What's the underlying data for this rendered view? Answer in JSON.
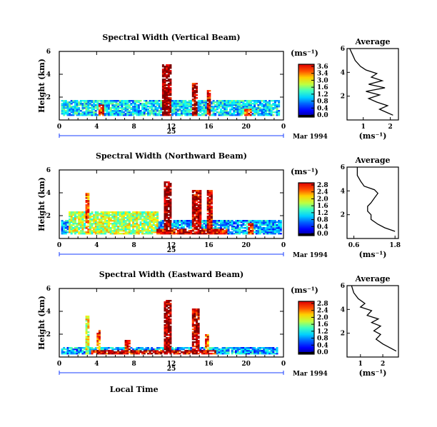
{
  "chart_data": [
    {
      "type": "heatmap",
      "title": "Spectral Width (Vertical Beam)",
      "ylabel": "Height (km)",
      "x_ticks": [
        "0",
        "4",
        "8",
        "12",
        "16",
        "20",
        "0"
      ],
      "y_ticks": [
        "6",
        "4",
        "2"
      ],
      "xlim": [
        0,
        24
      ],
      "ylim": [
        0,
        6
      ],
      "date_label": "25",
      "date_suffix": "Mar 1994",
      "colorbar": {
        "unit": "(ms⁻¹)",
        "ticks": [
          "3.6",
          "3.4",
          "3.0",
          "1.6",
          "1.2",
          "0.8",
          "0.4",
          "0.0"
        ],
        "range": [
          0,
          3.6
        ]
      },
      "features": [
        {
          "t0": 0.2,
          "t1": 23.6,
          "z0": 0.4,
          "z1": 1.8,
          "level": 0.35
        },
        {
          "t0": 11.1,
          "t1": 11.9,
          "z0": 0.4,
          "z1": 4.9,
          "level": 1.0
        },
        {
          "t0": 14.2,
          "t1": 14.8,
          "z0": 0.4,
          "z1": 3.3,
          "level": 0.95
        },
        {
          "t0": 15.9,
          "t1": 16.2,
          "z0": 0.4,
          "z1": 2.6,
          "level": 0.9
        },
        {
          "t0": 4.3,
          "t1": 4.7,
          "z0": 0.4,
          "z1": 1.4,
          "level": 0.85
        },
        {
          "t0": 19.8,
          "t1": 20.6,
          "z0": 0.4,
          "z1": 1.0,
          "level": 0.8
        }
      ],
      "average": {
        "title": "Average",
        "xlabel": "(ms⁻¹)",
        "x_ticks": [
          "1",
          "2"
        ],
        "xlim": [
          0.4,
          2.3
        ],
        "y_ticks": [
          "6",
          "4",
          "2"
        ],
        "ylim": [
          0,
          6
        ],
        "profile": [
          [
            0.5,
            6.0
          ],
          [
            0.6,
            5.5
          ],
          [
            0.7,
            5.0
          ],
          [
            0.9,
            4.5
          ],
          [
            1.1,
            4.2
          ],
          [
            1.5,
            3.9
          ],
          [
            1.3,
            3.6
          ],
          [
            1.7,
            3.3
          ],
          [
            1.2,
            3.0
          ],
          [
            1.8,
            2.7
          ],
          [
            1.1,
            2.4
          ],
          [
            1.6,
            2.1
          ],
          [
            1.2,
            1.8
          ],
          [
            1.5,
            1.5
          ],
          [
            1.9,
            1.2
          ],
          [
            1.6,
            0.9
          ],
          [
            1.9,
            0.6
          ],
          [
            2.1,
            0.4
          ]
        ]
      }
    },
    {
      "type": "heatmap",
      "title": "Spectral Width (Northward Beam)",
      "ylabel": "Height (km)",
      "x_ticks": [
        "0",
        "4",
        "8",
        "12",
        "16",
        "20",
        "0"
      ],
      "y_ticks": [
        "6",
        "4",
        "2"
      ],
      "xlim": [
        0,
        24
      ],
      "ylim": [
        0,
        6
      ],
      "date_label": "25",
      "date_suffix": "Mar 1994",
      "colorbar": {
        "unit": "(ms⁻¹)",
        "ticks": [
          "2.8",
          "2.4",
          "2.0",
          "1.6",
          "1.2",
          "0.8",
          "0.4",
          "0.0"
        ],
        "range": [
          0,
          2.8
        ]
      },
      "features": [
        {
          "t0": 0.2,
          "t1": 23.8,
          "z0": 0.4,
          "z1": 1.6,
          "level": 0.3
        },
        {
          "t0": 1.0,
          "t1": 10.5,
          "z0": 0.4,
          "z1": 2.4,
          "level": 0.55
        },
        {
          "t0": 11.2,
          "t1": 12.0,
          "z0": 0.4,
          "z1": 5.0,
          "level": 1.0
        },
        {
          "t0": 14.3,
          "t1": 15.2,
          "z0": 0.4,
          "z1": 4.3,
          "level": 0.95
        },
        {
          "t0": 15.8,
          "t1": 16.3,
          "z0": 0.4,
          "z1": 4.2,
          "level": 0.9
        },
        {
          "t0": 2.8,
          "t1": 3.3,
          "z0": 0.4,
          "z1": 4.0,
          "level": 0.8
        },
        {
          "t0": 20.3,
          "t1": 20.9,
          "z0": 0.4,
          "z1": 1.4,
          "level": 0.85
        },
        {
          "t0": 10.5,
          "t1": 18.0,
          "z0": 0.4,
          "z1": 0.9,
          "level": 0.9
        }
      ],
      "average": {
        "title": "Average",
        "xlabel": "(ms⁻¹)",
        "x_ticks": [
          "0.6",
          "1.8"
        ],
        "xlim": [
          0.4,
          1.9
        ],
        "y_ticks": [
          "6",
          "4",
          "2"
        ],
        "ylim": [
          0,
          6
        ],
        "profile": [
          [
            0.7,
            6.0
          ],
          [
            0.7,
            5.3
          ],
          [
            0.8,
            4.8
          ],
          [
            0.9,
            4.4
          ],
          [
            1.2,
            4.1
          ],
          [
            1.3,
            3.8
          ],
          [
            1.2,
            3.4
          ],
          [
            1.1,
            3.0
          ],
          [
            1.0,
            2.7
          ],
          [
            1.0,
            2.3
          ],
          [
            1.1,
            2.0
          ],
          [
            1.1,
            1.6
          ],
          [
            1.3,
            1.2
          ],
          [
            1.5,
            0.9
          ],
          [
            1.8,
            0.6
          ]
        ]
      }
    },
    {
      "type": "heatmap",
      "title": "Spectral Width (Eastward Beam)",
      "ylabel": "Height (km)",
      "xlabel": "Local Time",
      "x_ticks": [
        "0",
        "4",
        "8",
        "12",
        "16",
        "20",
        "0"
      ],
      "y_ticks": [
        "6",
        "4",
        "2"
      ],
      "xlim": [
        0,
        24
      ],
      "ylim": [
        0,
        6
      ],
      "date_label": "25",
      "date_suffix": "Mar 1994",
      "colorbar": {
        "unit": "(ms⁻¹)",
        "ticks": [
          "2.8",
          "2.4",
          "2.0",
          "1.6",
          "1.2",
          "0.8",
          "0.4",
          "0.0"
        ],
        "range": [
          0,
          2.8
        ]
      },
      "features": [
        {
          "t0": 0.2,
          "t1": 23.4,
          "z0": 0.3,
          "z1": 0.9,
          "level": 0.3
        },
        {
          "t0": 3.5,
          "t1": 16.8,
          "z0": 0.3,
          "z1": 0.6,
          "level": 0.9
        },
        {
          "t0": 11.2,
          "t1": 11.9,
          "z0": 0.3,
          "z1": 5.0,
          "level": 1.0
        },
        {
          "t0": 14.3,
          "t1": 14.9,
          "z0": 0.3,
          "z1": 4.3,
          "level": 0.95
        },
        {
          "t0": 15.6,
          "t1": 16.0,
          "z0": 0.3,
          "z1": 2.0,
          "level": 0.8
        },
        {
          "t0": 4.1,
          "t1": 4.4,
          "z0": 0.3,
          "z1": 2.4,
          "level": 0.8
        },
        {
          "t0": 2.9,
          "t1": 3.2,
          "z0": 0.3,
          "z1": 3.6,
          "level": 0.6
        },
        {
          "t0": 7.0,
          "t1": 7.6,
          "z0": 0.3,
          "z1": 1.5,
          "level": 0.85
        }
      ],
      "average": {
        "title": "Average",
        "xlabel": "(ms⁻¹)",
        "x_ticks": [
          "1",
          "2"
        ],
        "xlim": [
          0.4,
          2.7
        ],
        "y_ticks": [
          "6",
          "4",
          "2"
        ],
        "ylim": [
          0,
          6
        ],
        "profile": [
          [
            0.6,
            6.0
          ],
          [
            0.7,
            5.4
          ],
          [
            0.9,
            4.9
          ],
          [
            1.2,
            4.5
          ],
          [
            1.0,
            4.2
          ],
          [
            1.5,
            3.9
          ],
          [
            1.3,
            3.5
          ],
          [
            1.8,
            3.2
          ],
          [
            1.5,
            2.9
          ],
          [
            1.9,
            2.6
          ],
          [
            1.6,
            2.2
          ],
          [
            1.9,
            1.9
          ],
          [
            1.7,
            1.5
          ],
          [
            2.0,
            1.1
          ],
          [
            2.3,
            0.8
          ],
          [
            2.6,
            0.5
          ]
        ]
      }
    }
  ]
}
